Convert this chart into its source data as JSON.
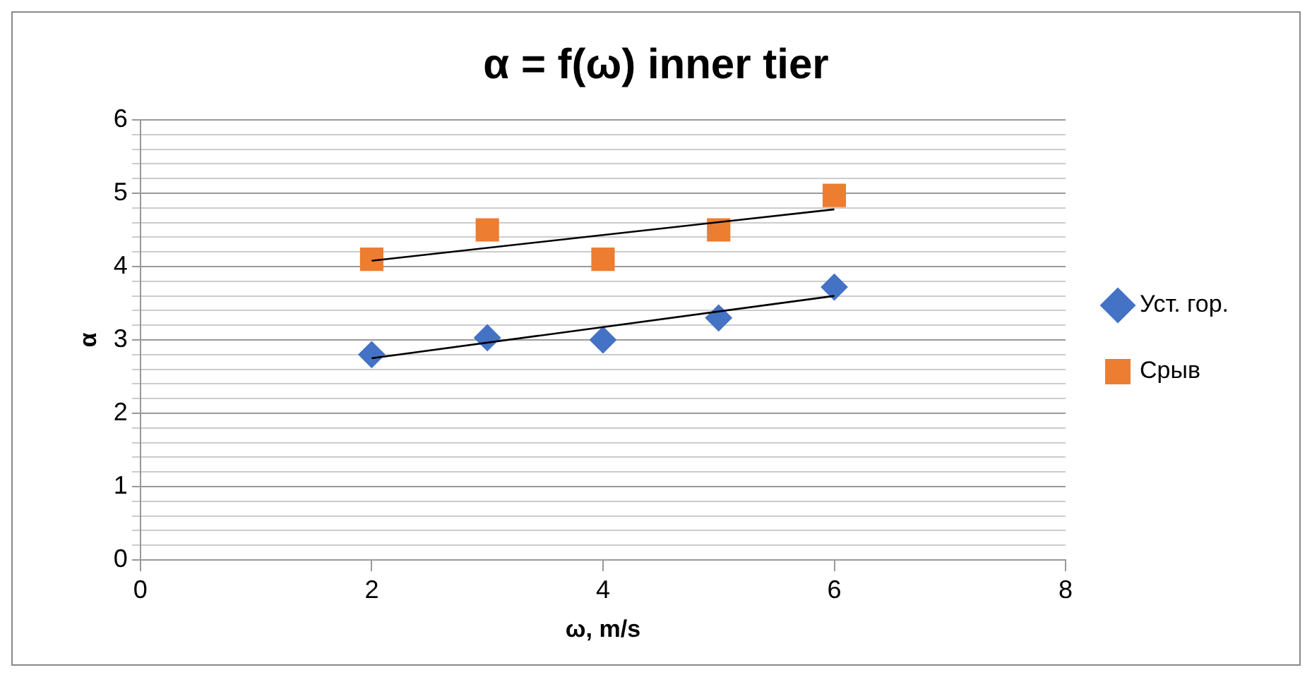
{
  "chart_data": {
    "type": "scatter",
    "title": "α = f(ω) inner tier",
    "xlabel": "ω, m/s",
    "ylabel": "α",
    "xlim": [
      0,
      8
    ],
    "xticks": [
      0,
      2,
      4,
      6,
      8
    ],
    "ylim": [
      0,
      6
    ],
    "yticks": [
      0,
      {
        "value": 0.2,
        "label": null
      },
      {
        "value": 0.4,
        "label": null
      },
      {
        "value": 0.6,
        "label": null
      },
      {
        "value": 0.8,
        "label": null
      },
      1,
      {
        "value": 1.2,
        "label": null
      },
      {
        "value": 1.4,
        "label": null
      },
      {
        "value": 1.6,
        "label": null
      },
      {
        "value": 1.8,
        "label": null
      },
      2,
      {
        "value": 2.2,
        "label": null
      },
      {
        "value": 2.4,
        "label": null
      },
      {
        "value": 2.6,
        "label": null
      },
      {
        "value": 2.8,
        "label": null
      },
      3,
      {
        "value": 3.2,
        "label": null
      },
      {
        "value": 3.4,
        "label": null
      },
      {
        "value": 3.6,
        "label": null
      },
      {
        "value": 3.8,
        "label": null
      },
      4,
      {
        "value": 4.2,
        "label": null
      },
      {
        "value": 4.4,
        "label": null
      },
      {
        "value": 4.6,
        "label": null
      },
      {
        "value": 4.8,
        "label": null
      },
      5,
      {
        "value": 5.2,
        "label": null
      },
      {
        "value": 5.4,
        "label": null
      },
      {
        "value": 5.6,
        "label": null
      },
      {
        "value": 5.8,
        "label": null
      },
      6
    ],
    "grid": "y",
    "legend": "right",
    "series": [
      {
        "name": "Уст. гор.",
        "marker": "diamond",
        "color": "#4472c4",
        "x": [
          2,
          3,
          4,
          5,
          6
        ],
        "values": [
          2.8,
          3.03,
          3.0,
          3.3,
          3.72
        ]
      },
      {
        "name": "Срыв",
        "marker": "square",
        "color": "#ed7d31",
        "x": [
          2,
          3,
          4,
          5,
          6
        ],
        "values": [
          4.1,
          4.5,
          4.1,
          4.5,
          4.97
        ]
      },
      {
        "type": "line",
        "marker": "none",
        "color": "#000000",
        "x": [
          2,
          6
        ],
        "values": [
          2.75,
          3.6
        ]
      },
      {
        "type": "line",
        "marker": "none",
        "color": "#000000",
        "x": [
          2,
          6
        ],
        "values": [
          4.08,
          4.78
        ]
      }
    ]
  }
}
